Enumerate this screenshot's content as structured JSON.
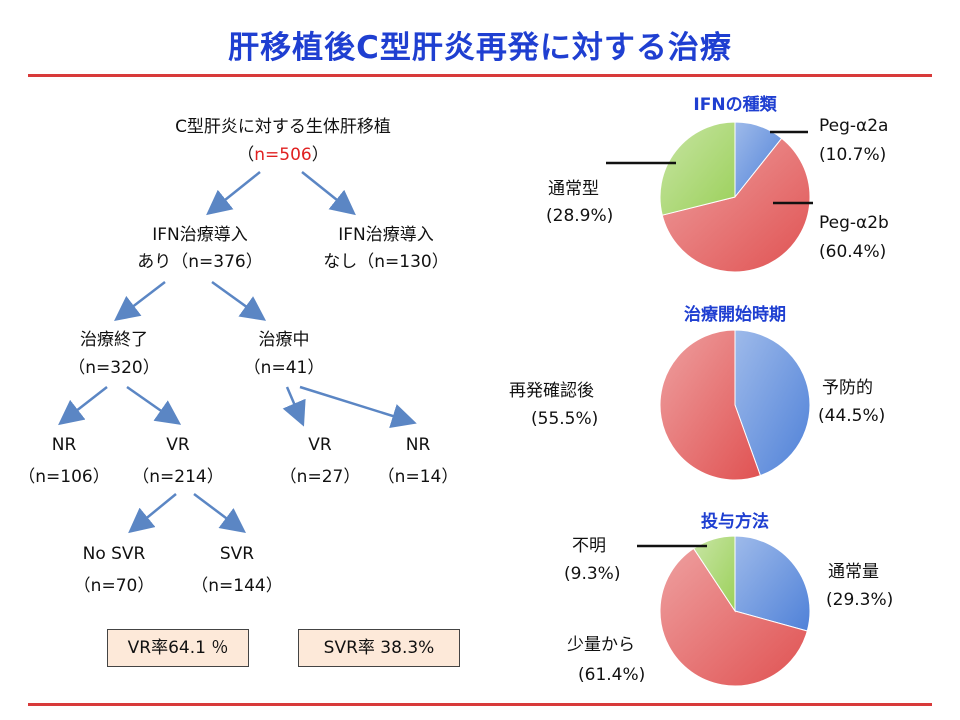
{
  "title": "肝移植後C型肝炎再発に対する治療",
  "tree": {
    "root": {
      "label": "C型肝炎に対する生体肝移植",
      "n_open": "（",
      "n": "n=506",
      "n_close": "）"
    },
    "ifn_yes": {
      "line1": "IFN治療導入",
      "line2": "あり（n=376）"
    },
    "ifn_no": {
      "line1": "IFN治療導入",
      "line2": "なし（n=130）"
    },
    "completed": {
      "line1": "治療終了",
      "line2": "（n=320）"
    },
    "ongoing": {
      "line1": "治療中",
      "line2": "（n=41）"
    },
    "nr1": {
      "line1": "NR",
      "line2": "（n=106）"
    },
    "vr1": {
      "line1": "VR",
      "line2": "（n=214）"
    },
    "vr2": {
      "line1": "VR",
      "line2": "（n=27）"
    },
    "nr2": {
      "line1": "NR",
      "line2": "（n=14）"
    },
    "nosvr": {
      "line1": "No SVR",
      "line2": "（n=70）"
    },
    "svr": {
      "line1": "SVR",
      "line2": "（n=144）"
    },
    "vr_rate": "VR率64.1 ％",
    "svr_rate": "SVR率 38.3%"
  },
  "chart_data": [
    {
      "type": "pie",
      "title": "IFNの種類",
      "slices": [
        {
          "label": "Peg-α2a",
          "pct": "(10.7%)",
          "value": 10.7,
          "color": "#4f81d8"
        },
        {
          "label": "Peg-α2b",
          "pct": "(60.4%)",
          "value": 60.4,
          "color": "#e05252"
        },
        {
          "label": "通常型",
          "pct": "(28.9%)",
          "value": 28.9,
          "color": "#9bd05a"
        }
      ]
    },
    {
      "type": "pie",
      "title": "治療開始時期",
      "slices": [
        {
          "label": "予防的",
          "pct": "(44.5%)",
          "value": 44.5,
          "color": "#4f81d8"
        },
        {
          "label": "再発確認後",
          "pct": "(55.5%)",
          "value": 55.5,
          "color": "#e05252"
        }
      ]
    },
    {
      "type": "pie",
      "title": "投与方法",
      "slices": [
        {
          "label": "通常量",
          "pct": "(29.3%)",
          "value": 29.3,
          "color": "#4f81d8"
        },
        {
          "label": "少量から",
          "pct": "(61.4%)",
          "value": 61.4,
          "color": "#e05252"
        },
        {
          "label": "不明",
          "pct": "(9.3%)",
          "value": 9.3,
          "color": "#9bd05a"
        }
      ]
    }
  ]
}
